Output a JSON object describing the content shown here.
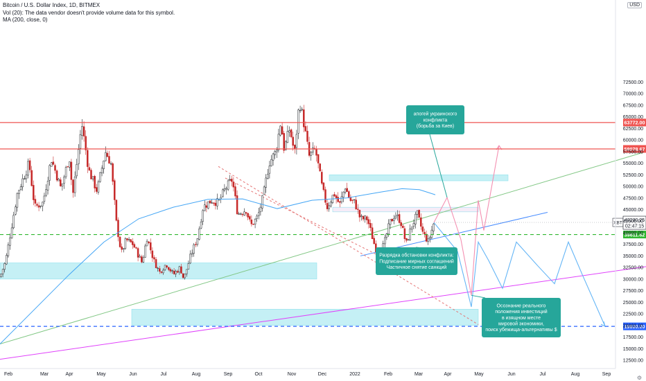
{
  "header": {
    "title": "Bitcoin / U.S. Dollar Index, 1D, BITMEX",
    "vol_line": "Vol (20): The data vendor doesn't provide volume data for this symbol.",
    "ma_line": "MA (200, close, 0)",
    "currency": "USD"
  },
  "chart_data": {
    "type": "candlestick",
    "symbol": "XBT",
    "x_axis_labels": [
      "Feb",
      "Mar",
      "Apr",
      "May",
      "Jun",
      "Jul",
      "Aug",
      "Sep",
      "Oct",
      "Nov",
      "Dec",
      "2022",
      "Feb",
      "Mar",
      "Apr",
      "May",
      "Jun",
      "Jul",
      "Aug",
      "Sep"
    ],
    "y_axis_labels": [
      72500,
      70000,
      67500,
      65000,
      62500,
      60000,
      57500,
      55000,
      52500,
      50000,
      47500,
      45000,
      42500,
      40000,
      37500,
      35000,
      32500,
      30000,
      27500,
      25000,
      22500,
      20000,
      17500,
      15000,
      12500
    ],
    "ylim": [
      11300,
      75300
    ],
    "price_path": [
      [
        0,
        30500
      ],
      [
        8,
        33800
      ],
      [
        25,
        48500
      ],
      [
        42,
        55000
      ],
      [
        50,
        45500
      ],
      [
        62,
        46500
      ],
      [
        74,
        56000
      ],
      [
        88,
        49500
      ],
      [
        100,
        56500
      ],
      [
        105,
        48000
      ],
      [
        118,
        63600
      ],
      [
        128,
        53500
      ],
      [
        140,
        49000
      ],
      [
        152,
        57500
      ],
      [
        160,
        55000
      ],
      [
        168,
        42000
      ],
      [
        175,
        35500
      ],
      [
        182,
        38500
      ],
      [
        192,
        37500
      ],
      [
        205,
        33500
      ],
      [
        212,
        39000
      ],
      [
        222,
        34000
      ],
      [
        230,
        31500
      ],
      [
        240,
        33300
      ],
      [
        250,
        31000
      ],
      [
        260,
        32500
      ],
      [
        265,
        30000
      ],
      [
        275,
        35000
      ],
      [
        285,
        39000
      ],
      [
        293,
        45500
      ],
      [
        305,
        47000
      ],
      [
        315,
        46500
      ],
      [
        325,
        49500
      ],
      [
        335,
        51500
      ],
      [
        343,
        44000
      ],
      [
        355,
        45000
      ],
      [
        362,
        41500
      ],
      [
        372,
        43500
      ],
      [
        380,
        48000
      ],
      [
        388,
        55000
      ],
      [
        398,
        57500
      ],
      [
        405,
        64000
      ],
      [
        410,
        58000
      ],
      [
        418,
        62500
      ],
      [
        425,
        57000
      ],
      [
        432,
        68500
      ],
      [
        438,
        64000
      ],
      [
        446,
        56500
      ],
      [
        455,
        58000
      ],
      [
        465,
        49500
      ],
      [
        472,
        45500
      ],
      [
        482,
        48500
      ],
      [
        490,
        46000
      ],
      [
        498,
        50000
      ],
      [
        505,
        47000
      ],
      [
        512,
        46500
      ],
      [
        520,
        43000
      ],
      [
        530,
        43000
      ],
      [
        540,
        37500
      ],
      [
        546,
        35000
      ],
      [
        554,
        37500
      ],
      [
        562,
        42000
      ],
      [
        570,
        44000
      ],
      [
        578,
        42500
      ],
      [
        586,
        37500
      ],
      [
        594,
        41500
      ],
      [
        602,
        44000
      ],
      [
        610,
        40000
      ],
      [
        618,
        38000
      ],
      [
        626,
        42200
      ]
    ],
    "ma200": [
      [
        0,
        16000
      ],
      [
        40,
        22000
      ],
      [
        100,
        31000
      ],
      [
        150,
        38000
      ],
      [
        200,
        43000
      ],
      [
        250,
        45500
      ],
      [
        300,
        47200
      ],
      [
        350,
        47300
      ],
      [
        400,
        45200
      ],
      [
        450,
        47000
      ],
      [
        500,
        47500
      ],
      [
        550,
        48800
      ],
      [
        580,
        49500
      ],
      [
        605,
        49300
      ],
      [
        628,
        48200
      ]
    ],
    "current_price": "42230.25",
    "countdown": "02:47:15",
    "horizontal_levels": [
      {
        "price": 63772.0,
        "label": "63772.00",
        "color": "#ef5350",
        "style": "solid"
      },
      {
        "price": 58078.67,
        "label": "58078.67",
        "color": "#ef5350",
        "style": "solid"
      },
      {
        "price": 39611.62,
        "label": "39611.62",
        "color": "#2fb62f",
        "style": "dashed"
      },
      {
        "price": 19800.0,
        "label": "19800.00",
        "color": "#2962ff",
        "style": "dashed"
      }
    ],
    "zones": [
      {
        "x": [
          0,
          457
        ],
        "y": [
          30000,
          33500
        ],
        "color": "#b2ebf2"
      },
      {
        "x": [
          190,
          690
        ],
        "y": [
          20000,
          23500
        ],
        "color": "#b2ebf2"
      },
      {
        "x": [
          475,
          733
        ],
        "y": [
          51200,
          52500
        ],
        "color": "#b2ebf2"
      },
      {
        "x": [
          480,
          690
        ],
        "y": [
          44500,
          45500
        ],
        "color": "#f3e5f5"
      }
    ],
    "trend_lines": [
      {
        "from": [
          0,
          16000
        ],
        "to": [
          932,
          57500
        ],
        "color": "#81c784"
      },
      {
        "from": [
          0,
          12700
        ],
        "to": [
          932,
          32700
        ],
        "color": "#e040fb"
      },
      {
        "from": [
          520,
          35000
        ],
        "to": [
          790,
          44400
        ],
        "color": "#448aff"
      },
      {
        "from": [
          315,
          54300
        ],
        "to": [
          690,
          20200
        ],
        "color": "#e57373",
        "dashed": true
      },
      {
        "from": [
          325,
          51800
        ],
        "to": [
          550,
          34800
        ],
        "color": "#e57373",
        "dashed": true
      }
    ],
    "forecast_pink": [
      [
        626,
        42200
      ],
      [
        645,
        47600
      ],
      [
        665,
        38500
      ],
      [
        680,
        26500
      ],
      [
        690,
        47000
      ],
      [
        698,
        40500
      ],
      [
        720,
        58800
      ]
    ],
    "forecast_blue": [
      [
        626,
        42200
      ],
      [
        660,
        36000
      ],
      [
        680,
        24000
      ],
      [
        690,
        38000
      ],
      [
        705,
        34000
      ],
      [
        725,
        28000
      ],
      [
        745,
        38000
      ],
      [
        775,
        33000
      ],
      [
        800,
        29000
      ],
      [
        820,
        38000
      ],
      [
        840,
        31000
      ],
      [
        873,
        19800
      ]
    ],
    "annotations": [
      {
        "text": "апогей украинского\nконфликта\n(борьба за Киев)",
        "target": [
          645,
          47600
        ]
      },
      {
        "text": "Разрядка обстановки конфликта:\nПодписание мирных соглашений\nЧастичное снятие санкций",
        "target": [
          660,
          36000
        ]
      },
      {
        "text": "Осознание реального\nположения инвестиций\nв изящном месте\nмировой экономики,\nпоиск убежища-альтернативы $",
        "target": [
          680,
          26500
        ]
      }
    ]
  }
}
